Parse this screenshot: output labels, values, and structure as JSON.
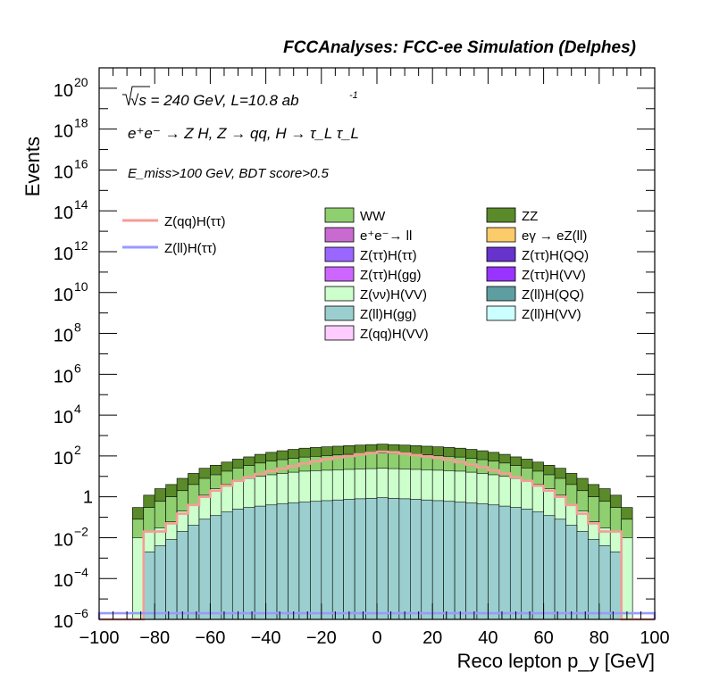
{
  "chart_data": {
    "type": "stacked-step-histogram",
    "title": "FCCAnalyses: FCC-ee Simulation (Delphes)",
    "annotations": {
      "energy_lumi": "√s = 240 GeV, L=10.8 ab",
      "lumi_exponent": "-1",
      "process": "e⁺e⁻ → Z H, Z → qq, H → τ_L τ_L",
      "selection": "E_miss>100 GeV, BDT score>0.5"
    },
    "xlabel": "Reco lepton p_y [GeV]",
    "ylabel": "Events",
    "xlim": [
      -100,
      100
    ],
    "ylim": [
      1e-06,
      1e+21
    ],
    "yscale": "log",
    "x_ticks": [
      "−100",
      "−80",
      "−60",
      "−40",
      "−20",
      "0",
      "20",
      "40",
      "60",
      "80",
      "100"
    ],
    "y_ticks": [
      {
        "base": "10",
        "exp": "−6"
      },
      {
        "base": "10",
        "exp": "−4"
      },
      {
        "base": "10",
        "exp": "−2"
      },
      {
        "base": "1",
        "exp": ""
      },
      {
        "base": "10",
        "exp": "2"
      },
      {
        "base": "10",
        "exp": "4"
      },
      {
        "base": "10",
        "exp": "6"
      },
      {
        "base": "10",
        "exp": "8"
      },
      {
        "base": "10",
        "exp": "10"
      },
      {
        "base": "10",
        "exp": "12"
      },
      {
        "base": "10",
        "exp": "14"
      },
      {
        "base": "10",
        "exp": "16"
      },
      {
        "base": "10",
        "exp": "18"
      },
      {
        "base": "10",
        "exp": "20"
      }
    ],
    "bin_edges": [
      -100,
      -96,
      -92,
      -88,
      -84,
      -80,
      -76,
      -72,
      -68,
      -64,
      -60,
      -56,
      -52,
      -48,
      -44,
      -40,
      -36,
      -32,
      -28,
      -24,
      -20,
      -16,
      -12,
      -8,
      -4,
      0,
      4,
      8,
      12,
      16,
      20,
      24,
      28,
      32,
      36,
      40,
      44,
      48,
      52,
      56,
      60,
      64,
      68,
      72,
      76,
      80,
      84,
      88,
      92,
      96,
      100
    ],
    "stack_envelopes": [
      {
        "name": "ZZ",
        "color": "#5a8a2a",
        "values": [
          0,
          0,
          0,
          0.3,
          1.2,
          2.5,
          4,
          8,
          14,
          25,
          35,
          50,
          70,
          90,
          120,
          150,
          180,
          210,
          240,
          260,
          280,
          300,
          320,
          340,
          360,
          380,
          360,
          340,
          320,
          300,
          280,
          260,
          240,
          210,
          180,
          150,
          120,
          90,
          70,
          50,
          35,
          25,
          14,
          8,
          4,
          2.5,
          1.2,
          0.3,
          0,
          0
        ]
      },
      {
        "name": "WW",
        "color": "#8fcf6f",
        "values": [
          0,
          0,
          0,
          0.08,
          0.3,
          0.6,
          1,
          2,
          4,
          8,
          12,
          18,
          26,
          34,
          45,
          56,
          66,
          76,
          88,
          96,
          104,
          112,
          120,
          128,
          136,
          140,
          136,
          128,
          120,
          112,
          104,
          96,
          88,
          76,
          66,
          56,
          45,
          34,
          26,
          18,
          12,
          8,
          4,
          2,
          1,
          0.6,
          0.3,
          0.08,
          0,
          0
        ]
      },
      {
        "name": "Z(νν)H(VV)",
        "color": "#ccffcc",
        "values": [
          0,
          0,
          0,
          0.01,
          0.02,
          0.03,
          0.06,
          0.2,
          0.4,
          1.2,
          2.5,
          4,
          6,
          8,
          10,
          12,
          14,
          16,
          18,
          19,
          20,
          21,
          22,
          23,
          24,
          25,
          24,
          23,
          22,
          21,
          20,
          19,
          18,
          16,
          14,
          12,
          10,
          8,
          6,
          4,
          2.5,
          1.2,
          0.4,
          0.2,
          0.06,
          0.03,
          0.02,
          0.01,
          0,
          0
        ]
      },
      {
        "name": "Z(ll)H(gg)",
        "color": "#9bcfcf",
        "values": [
          0,
          0,
          0,
          0,
          0.002,
          0.004,
          0.008,
          0.02,
          0.04,
          0.08,
          0.12,
          0.18,
          0.25,
          0.3,
          0.35,
          0.4,
          0.45,
          0.5,
          0.55,
          0.6,
          0.65,
          0.7,
          0.75,
          0.8,
          0.85,
          0.9,
          0.85,
          0.8,
          0.75,
          0.7,
          0.65,
          0.6,
          0.55,
          0.5,
          0.45,
          0.4,
          0.35,
          0.3,
          0.25,
          0.18,
          0.12,
          0.08,
          0.04,
          0.02,
          0.008,
          0.004,
          0.002,
          0,
          0,
          0
        ]
      }
    ],
    "signal_overlays": [
      {
        "name": "Z(qq)H(ττ)",
        "color": "#f59c96",
        "values": [
          0,
          0,
          0,
          0,
          0.02,
          0.02,
          0.05,
          0.15,
          0.4,
          1,
          2,
          3.5,
          6,
          9,
          13,
          18,
          24,
          32,
          42,
          55,
          70,
          85,
          100,
          120,
          140,
          160,
          150,
          130,
          110,
          95,
          80,
          65,
          50,
          38,
          28,
          20,
          14,
          9,
          6,
          3.5,
          2,
          1,
          0.4,
          0.15,
          0.05,
          0.02,
          0.02,
          0,
          0,
          0
        ]
      },
      {
        "name": "Z(ll)H(ττ)",
        "color": "#9999ff",
        "values": [
          2e-06,
          2e-06,
          2e-06,
          2e-06,
          2e-06,
          2e-06,
          2e-06,
          2e-06,
          2e-06,
          2e-06,
          2e-06,
          2e-06,
          2e-06,
          2e-06,
          2e-06,
          2e-06,
          2e-06,
          2e-06,
          2e-06,
          2e-06,
          2e-06,
          2e-06,
          2e-06,
          2e-06,
          2e-06,
          2e-06,
          2e-06,
          2e-06,
          2e-06,
          2e-06,
          2e-06,
          2e-06,
          2e-06,
          2e-06,
          2e-06,
          2e-06,
          2e-06,
          2e-06,
          2e-06,
          2e-06,
          2e-06,
          2e-06,
          2e-06,
          2e-06,
          2e-06,
          2e-06,
          2e-06,
          2e-06,
          2e-06,
          2e-06
        ]
      }
    ],
    "legend_left": [
      {
        "label": "Z(qq)H(ττ)",
        "color": "#f59c96",
        "style": "line"
      },
      {
        "label": "Z(ll)H(ττ)",
        "color": "#9999ff",
        "style": "line"
      }
    ],
    "legend_fill": [
      {
        "label": "WW",
        "color": "#8fcf6f"
      },
      {
        "label": "ZZ",
        "color": "#5a8a2a"
      },
      {
        "label": "e⁺e⁻→ ll",
        "color": "#c86ad0"
      },
      {
        "label": "eγ → eZ(ll)",
        "color": "#fccb6a"
      },
      {
        "label": "Z(ττ)H(ττ)",
        "color": "#9966ff"
      },
      {
        "label": "Z(ττ)H(QQ)",
        "color": "#6633cc"
      },
      {
        "label": "Z(ττ)H(gg)",
        "color": "#cc66ff"
      },
      {
        "label": "Z(ττ)H(VV)",
        "color": "#9933ff"
      },
      {
        "label": "Z(νν)H(VV)",
        "color": "#ccffcc"
      },
      {
        "label": "Z(ll)H(QQ)",
        "color": "#5f9ea0"
      },
      {
        "label": "Z(ll)H(gg)",
        "color": "#9bcfcf"
      },
      {
        "label": "Z(ll)H(VV)",
        "color": "#ccffff"
      },
      {
        "label": "Z(qq)H(VV)",
        "color": "#ffccff"
      }
    ]
  }
}
